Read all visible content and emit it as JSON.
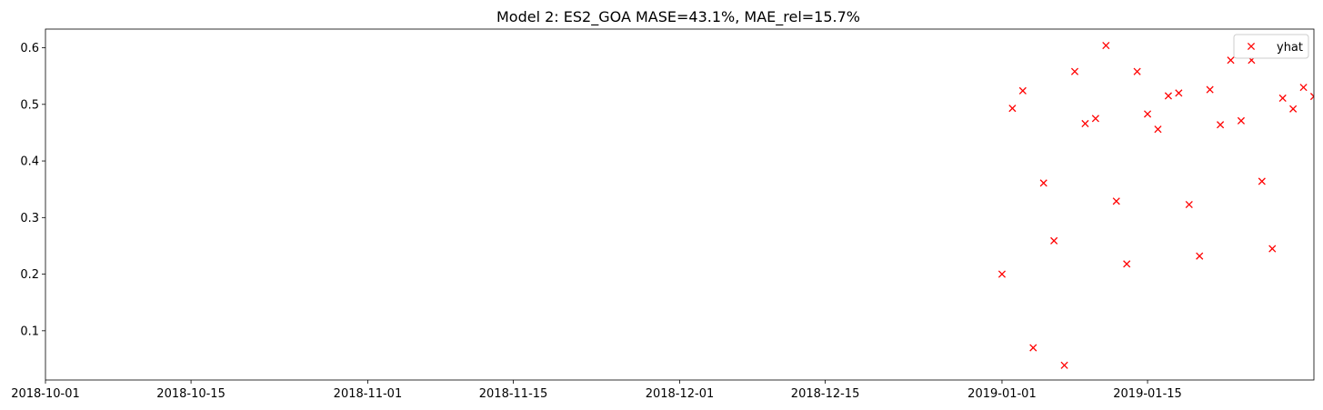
{
  "chart_data": {
    "type": "scatter",
    "title": "Model 2: ES2_GOA MASE=43.1%, MAE_rel=15.7%",
    "xlabel": "",
    "ylabel": "",
    "x_is_date": true,
    "xlim": [
      "2018-10-01",
      "2019-01-31"
    ],
    "ylim": [
      0.013,
      0.633
    ],
    "grid": false,
    "legend_position": "top-right",
    "x_ticks": [
      "2018-10-01",
      "2018-10-15",
      "2018-11-01",
      "2018-11-15",
      "2018-12-01",
      "2018-12-15",
      "2019-01-01",
      "2019-01-15"
    ],
    "y_ticks": [
      "0.1",
      "0.2",
      "0.3",
      "0.4",
      "0.5",
      "0.6"
    ],
    "series": [
      {
        "name": "yhat",
        "marker": "x",
        "color": "#ff0000",
        "x": [
          "2019-01-01",
          "2019-01-02",
          "2019-01-03",
          "2019-01-04",
          "2019-01-05",
          "2019-01-06",
          "2019-01-07",
          "2019-01-08",
          "2019-01-09",
          "2019-01-10",
          "2019-01-11",
          "2019-01-12",
          "2019-01-13",
          "2019-01-14",
          "2019-01-15",
          "2019-01-16",
          "2019-01-17",
          "2019-01-18",
          "2019-01-19",
          "2019-01-20",
          "2019-01-21",
          "2019-01-22",
          "2019-01-23",
          "2019-01-24",
          "2019-01-25",
          "2019-01-26",
          "2019-01-27",
          "2019-01-28",
          "2019-01-29",
          "2019-01-30",
          "2019-01-31"
        ],
        "y": [
          0.2,
          0.493,
          0.524,
          0.07,
          0.361,
          0.259,
          0.039,
          0.558,
          0.466,
          0.475,
          0.604,
          0.329,
          0.218,
          0.558,
          0.483,
          0.456,
          0.515,
          0.52,
          0.323,
          0.232,
          0.526,
          0.464,
          0.578,
          0.471,
          0.578,
          0.364,
          0.245,
          0.511,
          0.492,
          0.53,
          0.514
        ]
      }
    ]
  }
}
